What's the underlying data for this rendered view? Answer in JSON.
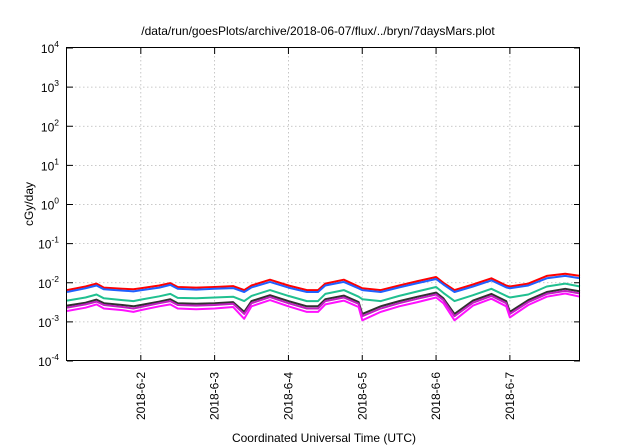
{
  "chart_data": {
    "type": "line",
    "title": "/data/run/goesPlots/archive/2018-06-07/flux/../bryn/7daysMars.plot",
    "xlabel": "Coordinated Universal Time (UTC)",
    "ylabel": "cGy/day",
    "yscale": "log",
    "ylim": [
      0.0001,
      10000
    ],
    "y_ticks": [
      {
        "base": "10",
        "exp": "-4"
      },
      {
        "base": "10",
        "exp": "-3"
      },
      {
        "base": "10",
        "exp": "-2"
      },
      {
        "base": "10",
        "exp": "-1"
      },
      {
        "base": "10",
        "exp": "0"
      },
      {
        "base": "10",
        "exp": "1"
      },
      {
        "base": "10",
        "exp": "2"
      },
      {
        "base": "10",
        "exp": "3"
      },
      {
        "base": "10",
        "exp": "4"
      }
    ],
    "xlim": [
      0,
      6.95
    ],
    "x_ticks": [
      {
        "x": 1,
        "label": "2018-6-2"
      },
      {
        "x": 2,
        "label": "2018-6-3"
      },
      {
        "x": 3,
        "label": "2018-6-4"
      },
      {
        "x": 4,
        "label": "2018-6-5"
      },
      {
        "x": 5,
        "label": "2018-6-6"
      },
      {
        "x": 6,
        "label": "2018-6-7"
      }
    ],
    "grid": true,
    "x": [
      0,
      0.25,
      0.4,
      0.5,
      0.75,
      0.9,
      1.0,
      1.25,
      1.4,
      1.5,
      1.75,
      2.0,
      2.25,
      2.4,
      2.5,
      2.75,
      3.0,
      3.25,
      3.4,
      3.5,
      3.75,
      3.95,
      4.0,
      4.25,
      4.5,
      4.75,
      5.0,
      5.1,
      5.25,
      5.5,
      5.75,
      5.95,
      6.0,
      6.25,
      6.5,
      6.75,
      6.95
    ],
    "series": [
      {
        "color": "#ff0000",
        "values": [
          0.0065,
          0.008,
          0.0095,
          0.0075,
          0.007,
          0.0068,
          0.0072,
          0.0085,
          0.0098,
          0.0078,
          0.0075,
          0.0078,
          0.0082,
          0.0065,
          0.0085,
          0.012,
          0.0085,
          0.0065,
          0.0065,
          0.0095,
          0.012,
          0.008,
          0.0072,
          0.0065,
          0.0085,
          0.011,
          0.014,
          0.01,
          0.0065,
          0.009,
          0.013,
          0.0085,
          0.008,
          0.0095,
          0.015,
          0.017,
          0.015
        ]
      },
      {
        "color": "#2060ff",
        "values": [
          0.0058,
          0.0072,
          0.0085,
          0.0068,
          0.0063,
          0.006,
          0.0064,
          0.0075,
          0.0088,
          0.007,
          0.0067,
          0.007,
          0.0073,
          0.0058,
          0.0076,
          0.0105,
          0.0075,
          0.0058,
          0.0058,
          0.0085,
          0.0105,
          0.0072,
          0.0065,
          0.0058,
          0.0076,
          0.0098,
          0.0125,
          0.009,
          0.0058,
          0.008,
          0.0115,
          0.0076,
          0.0072,
          0.0085,
          0.013,
          0.015,
          0.013
        ]
      },
      {
        "color": "#20c090",
        "values": [
          0.0035,
          0.0042,
          0.005,
          0.004,
          0.0036,
          0.0034,
          0.0037,
          0.0045,
          0.0052,
          0.0041,
          0.004,
          0.0042,
          0.0044,
          0.0034,
          0.0046,
          0.0065,
          0.0046,
          0.0034,
          0.0034,
          0.0052,
          0.0065,
          0.0044,
          0.0038,
          0.0034,
          0.0046,
          0.006,
          0.0078,
          0.0055,
          0.0034,
          0.0048,
          0.007,
          0.0046,
          0.0042,
          0.005,
          0.008,
          0.0095,
          0.008
        ]
      },
      {
        "color": "#303030",
        "values": [
          0.0026,
          0.0031,
          0.0037,
          0.003,
          0.0027,
          0.0025,
          0.0027,
          0.0033,
          0.0038,
          0.003,
          0.0029,
          0.003,
          0.0032,
          0.0018,
          0.0034,
          0.0048,
          0.0034,
          0.0025,
          0.0025,
          0.0038,
          0.0047,
          0.0032,
          0.0016,
          0.0025,
          0.0034,
          0.0044,
          0.0056,
          0.004,
          0.0016,
          0.0035,
          0.0052,
          0.0034,
          0.0018,
          0.0036,
          0.0058,
          0.007,
          0.006
        ]
      },
      {
        "color": "#c020c0",
        "values": [
          0.0023,
          0.0028,
          0.0033,
          0.0027,
          0.0024,
          0.0022,
          0.0024,
          0.003,
          0.0034,
          0.0027,
          0.0026,
          0.0027,
          0.0029,
          0.0016,
          0.003,
          0.0043,
          0.003,
          0.0022,
          0.0022,
          0.0034,
          0.0042,
          0.0029,
          0.0014,
          0.0022,
          0.003,
          0.0039,
          0.005,
          0.0036,
          0.0014,
          0.0031,
          0.0046,
          0.003,
          0.0016,
          0.0032,
          0.0052,
          0.0062,
          0.0053
        ]
      },
      {
        "color": "#ff10ff",
        "values": [
          0.0019,
          0.0023,
          0.0028,
          0.0022,
          0.002,
          0.0018,
          0.002,
          0.0025,
          0.0028,
          0.0022,
          0.0021,
          0.0022,
          0.0024,
          0.0012,
          0.0025,
          0.0036,
          0.0025,
          0.0018,
          0.0018,
          0.0028,
          0.0035,
          0.0024,
          0.0011,
          0.0018,
          0.0025,
          0.0032,
          0.0042,
          0.003,
          0.0011,
          0.0026,
          0.0039,
          0.0025,
          0.0013,
          0.0027,
          0.0044,
          0.0053,
          0.0044
        ]
      }
    ]
  }
}
